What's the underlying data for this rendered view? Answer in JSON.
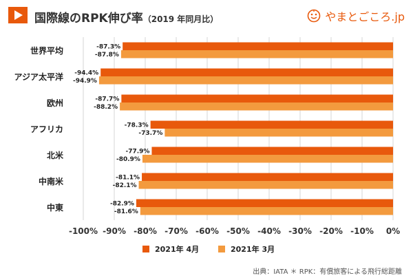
{
  "header": {
    "title": "国際線のRPK伸び率",
    "subtitle": "（2019 年同月比）",
    "brand": "やまとごころ.jp",
    "brand_icon": "brand-logo-icon"
  },
  "colors": {
    "accent": "#e8590c",
    "apr": "#e8590c",
    "mar": "#f39a3e",
    "grid": "#d6d6d6"
  },
  "chart_data": {
    "type": "bar",
    "orientation": "horizontal",
    "title": "国際線のRPK伸び率（2019 年同月比）",
    "categories": [
      "世界平均",
      "アジア太平洋",
      "欧州",
      "アフリカ",
      "北米",
      "中南米",
      "中東"
    ],
    "series": [
      {
        "name": "2021年 4月",
        "values": [
          -87.3,
          -94.4,
          -87.7,
          -78.3,
          -77.9,
          -81.1,
          -82.9
        ],
        "labels": [
          "-87.3%",
          "-94.4%",
          "-87.7%",
          "-78.3%",
          "-77.9%",
          "-81.1%",
          "-82.9%"
        ]
      },
      {
        "name": "2021年 3月",
        "values": [
          -87.8,
          -94.9,
          -88.2,
          -73.7,
          -80.9,
          -82.1,
          -81.6
        ],
        "labels": [
          "-87.8%",
          "-94.9%",
          "-88.2%",
          "-73.7%",
          "-80.9%",
          "-82.1%",
          "-81.6%"
        ]
      }
    ],
    "xlim": [
      -100,
      0
    ],
    "xticks": [
      -100,
      -90,
      -80,
      -70,
      -60,
      -50,
      -40,
      -30,
      -20,
      -10,
      0
    ],
    "xtick_labels": [
      "-100%",
      "-90%",
      "-80%",
      "-70%",
      "-60%",
      "-50%",
      "-40%",
      "-30%",
      "-20%",
      "-10%",
      "0%"
    ],
    "grid": true,
    "legend": "bottom"
  },
  "footer": {
    "source": "出典：IATA ＊ RPK：有償旅客による飛行総距離"
  }
}
